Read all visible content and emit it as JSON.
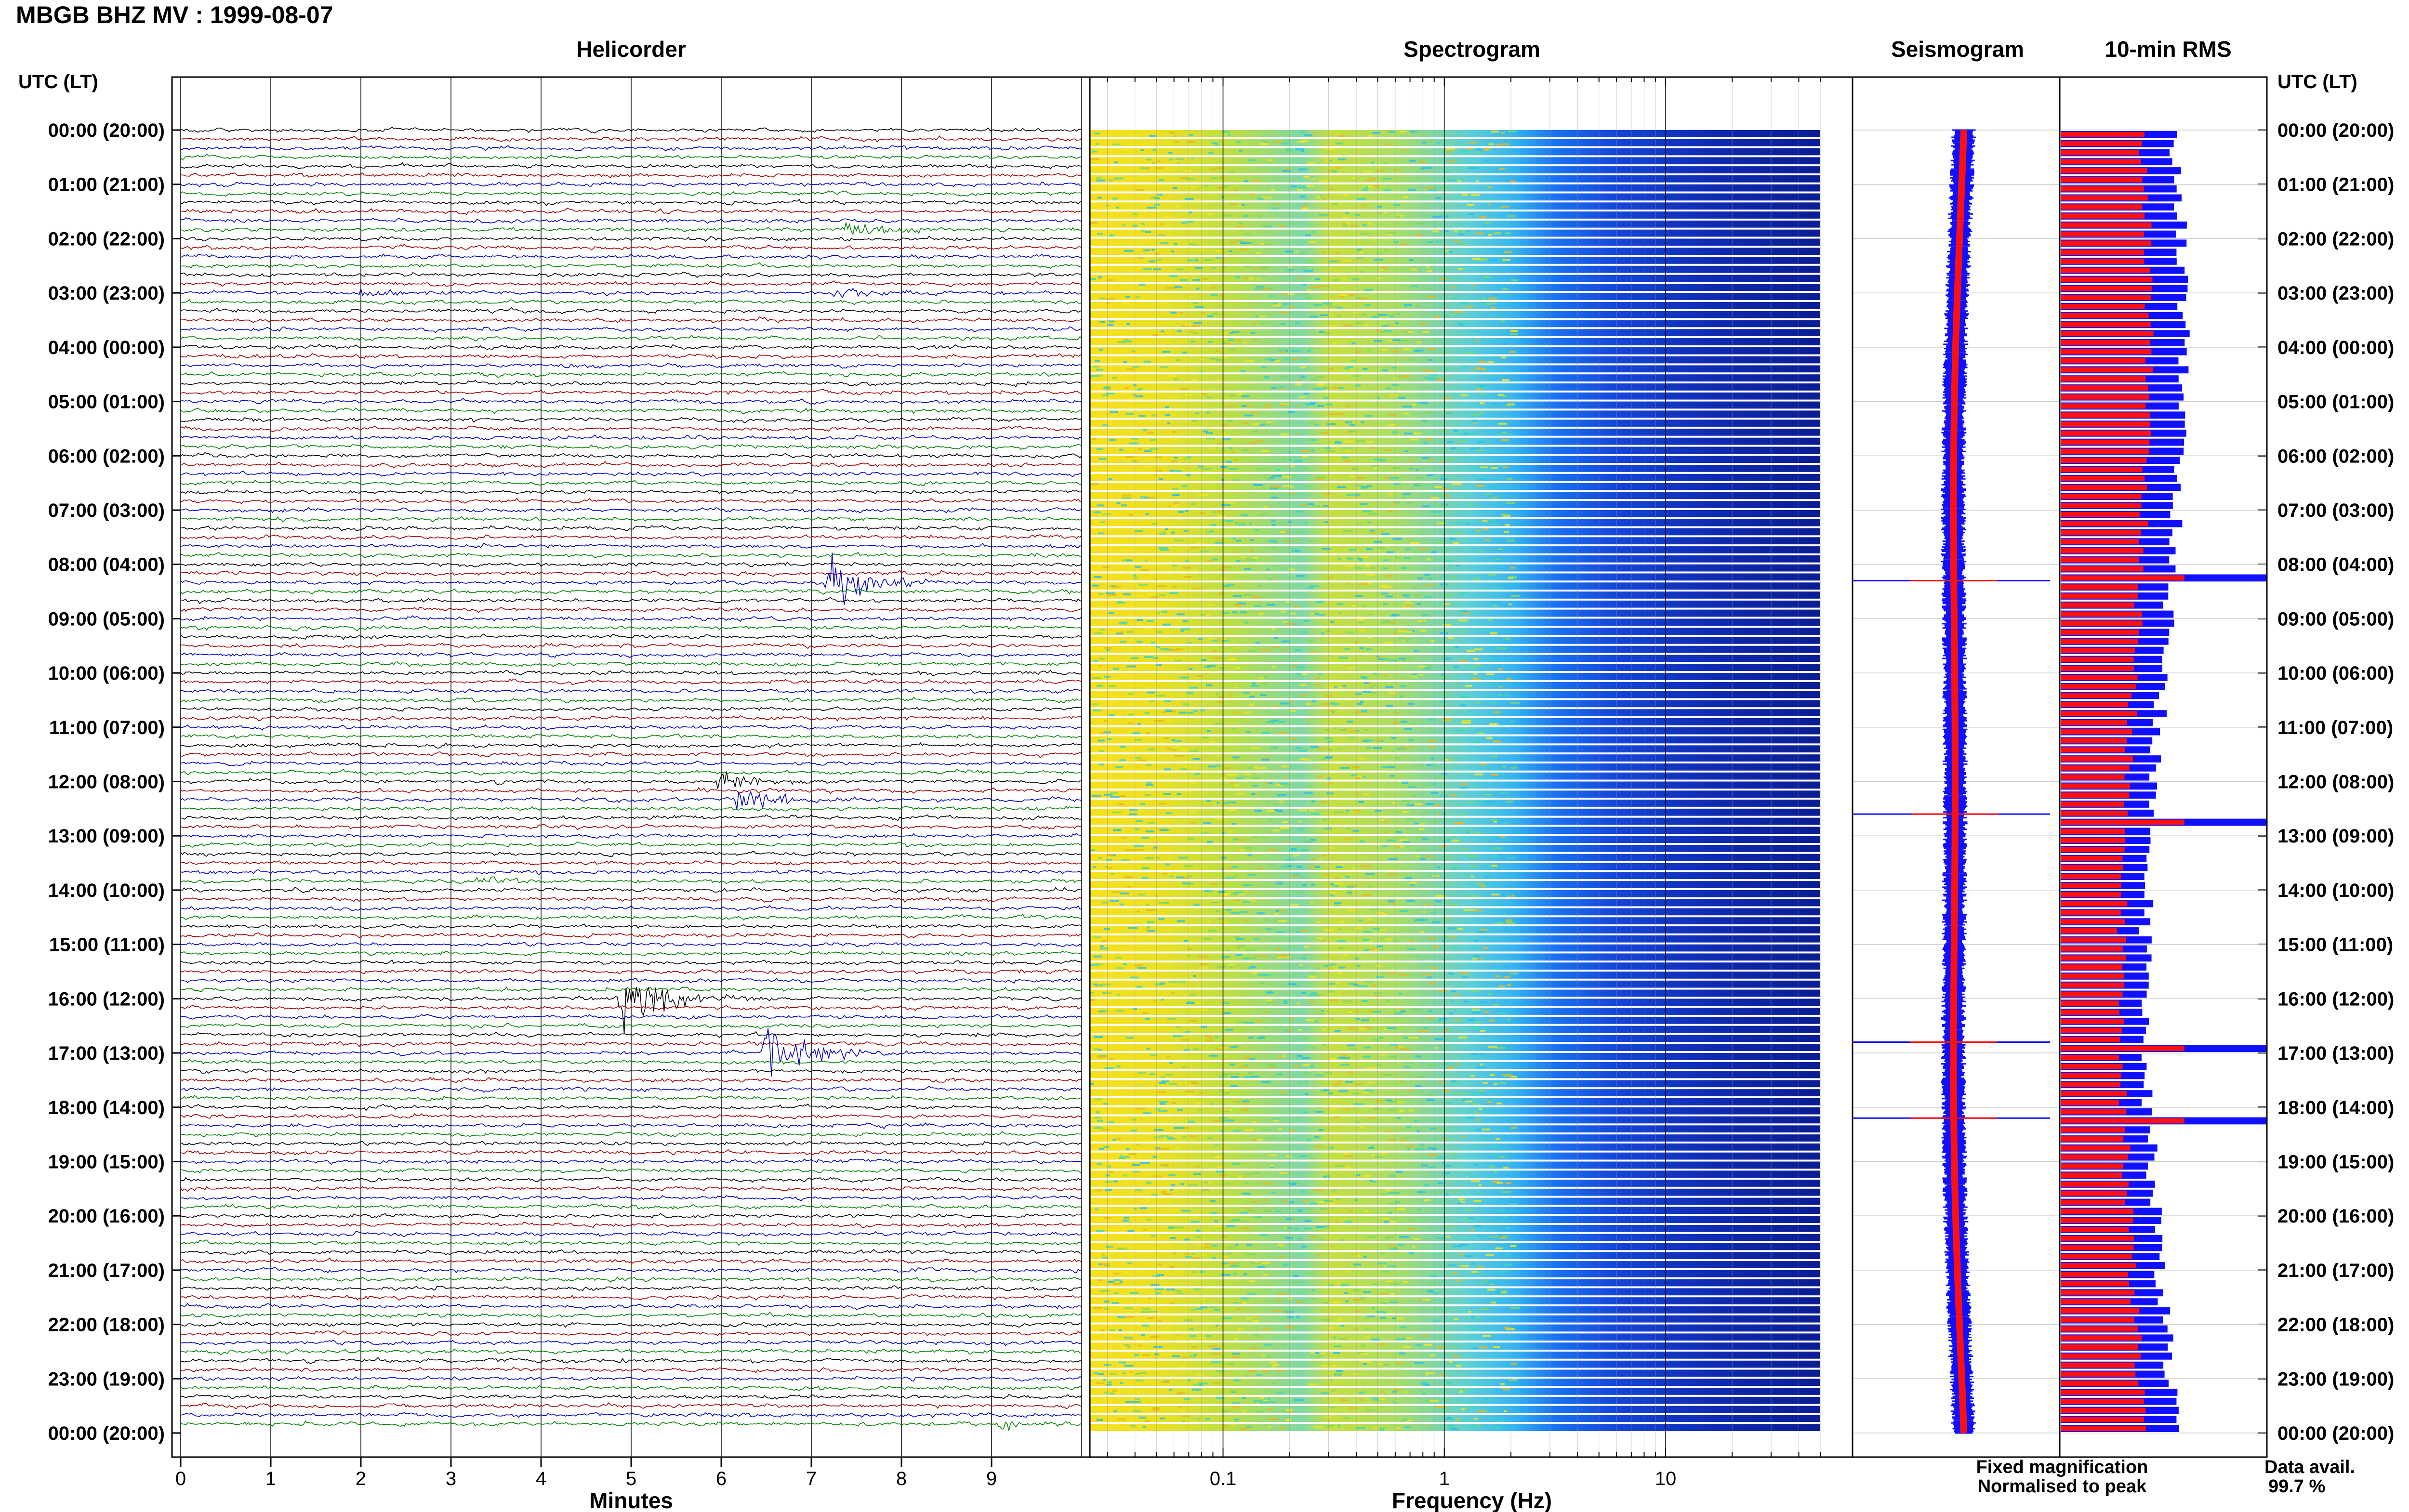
{
  "header": {
    "title": "MBGB BHZ MV : 1999-08-07"
  },
  "panels": {
    "helicorder": "Helicorder",
    "spectrogram": "Spectrogram",
    "seismogram": "Seismogram",
    "rms": "10-min RMS"
  },
  "axes": {
    "left_heading": "UTC (LT)",
    "right_heading": "UTC (LT)",
    "x_helicorder_label": "Minutes",
    "x_spectrogram_label": "Frequency (Hz)",
    "time_ticks": [
      "00:00 (20:00)",
      "01:00 (21:00)",
      "02:00 (22:00)",
      "03:00 (23:00)",
      "04:00 (00:00)",
      "05:00 (01:00)",
      "06:00 (02:00)",
      "07:00 (03:00)",
      "08:00 (04:00)",
      "09:00 (05:00)",
      "10:00 (06:00)",
      "11:00 (07:00)",
      "12:00 (08:00)",
      "13:00 (09:00)",
      "14:00 (10:00)",
      "15:00 (11:00)",
      "16:00 (12:00)",
      "17:00 (13:00)",
      "18:00 (14:00)",
      "19:00 (15:00)",
      "20:00 (16:00)",
      "21:00 (17:00)",
      "22:00 (18:00)",
      "23:00 (19:00)",
      "00:00 (20:00)"
    ],
    "minute_ticks": [
      "0",
      "1",
      "2",
      "3",
      "4",
      "5",
      "6",
      "7",
      "8",
      "9"
    ],
    "freq_ticks": [
      "0.1",
      "1",
      "10"
    ]
  },
  "legend": {
    "fixed": "Fixed magnification",
    "normalised": "Normalised to peak",
    "fixed_color": "#1010ff",
    "normalised_color": "#ff1010"
  },
  "availability": {
    "label": "Data avail.",
    "value": "99.7 %"
  },
  "chart_data": [
    {
      "type": "line",
      "panel": "helicorder",
      "title": "Helicorder",
      "xlabel": "Minutes",
      "xlim": [
        0,
        10
      ],
      "rows_per_hour": 6,
      "trace_colors": [
        "#000000",
        "#a00000",
        "#0000c0",
        "#008000"
      ],
      "events": [
        {
          "row": 11,
          "minute": 7.4,
          "amp": 1.5
        },
        {
          "row": 18,
          "minute": 2.0,
          "amp": 0.8
        },
        {
          "row": 18,
          "minute": 7.3,
          "amp": 0.9
        },
        {
          "row": 50,
          "minute": 7.2,
          "amp": 3.5
        },
        {
          "row": 72,
          "minute": 6.0,
          "amp": 1.5
        },
        {
          "row": 74,
          "minute": 6.2,
          "amp": 2.0
        },
        {
          "row": 83,
          "minute": 3.3,
          "amp": 0.8
        },
        {
          "row": 96,
          "minute": 4.9,
          "amp": 4.5
        },
        {
          "row": 102,
          "minute": 6.5,
          "amp": 4.0
        },
        {
          "row": 143,
          "minute": 9.1,
          "amp": 0.9
        }
      ]
    },
    {
      "type": "heatmap",
      "panel": "spectrogram",
      "title": "Spectrogram",
      "xlabel": "Frequency (Hz)",
      "xlim": [
        0.025,
        50
      ],
      "xscale": "log",
      "colormap": "jet"
    },
    {
      "type": "line",
      "panel": "seismogram",
      "title": "Seismogram",
      "series": [
        {
          "name": "Fixed magnification",
          "color": "#1010ff"
        },
        {
          "name": "Normalised to peak",
          "color": "#ff1010"
        }
      ],
      "spike_hours": [
        8.3,
        12.6,
        16.8,
        18.2
      ]
    },
    {
      "type": "bar",
      "panel": "rms",
      "title": "10-min RMS",
      "series": [
        {
          "name": "Fixed magnification",
          "color": "#1010ff"
        },
        {
          "name": "Normalised to peak",
          "color": "#ff1010"
        }
      ],
      "spike_hours": [
        8.2,
        12.6,
        16.8,
        18.2
      ]
    }
  ]
}
